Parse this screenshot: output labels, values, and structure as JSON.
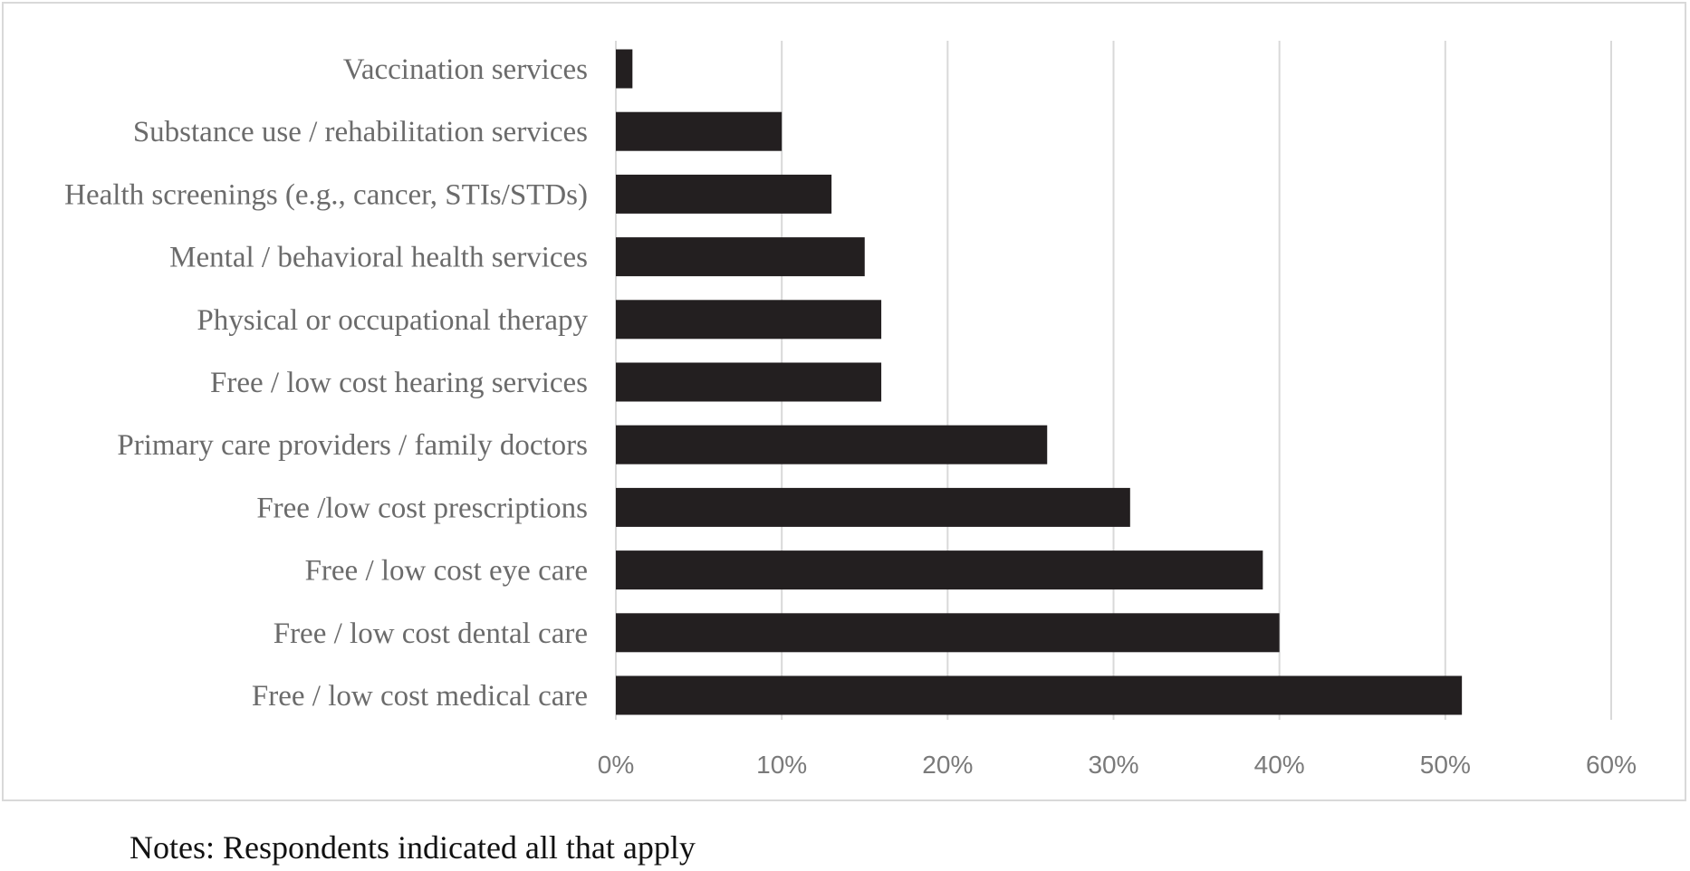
{
  "chart_data": {
    "type": "bar",
    "orientation": "horizontal",
    "categories": [
      "Vaccination services",
      "Substance use / rehabilitation services",
      "Health screenings (e.g., cancer, STIs/STDs)",
      "Mental / behavioral health services",
      "Physical or occupational therapy",
      "Free / low cost hearing services",
      "Primary care providers / family doctors",
      "Free /low cost prescriptions",
      "Free / low cost eye care",
      "Free / low cost dental care",
      "Free / low cost medical care"
    ],
    "values": [
      1,
      10,
      13,
      15,
      16,
      16,
      26,
      31,
      39,
      40,
      51
    ],
    "xlim": [
      0,
      60
    ],
    "x_ticks": [
      "0%",
      "10%",
      "20%",
      "30%",
      "40%",
      "50%",
      "60%"
    ],
    "grid": "vertical",
    "bar_color": "#231f20",
    "title": "",
    "xlabel": "",
    "ylabel": ""
  },
  "notes": "Notes: Respondents indicated all that apply"
}
